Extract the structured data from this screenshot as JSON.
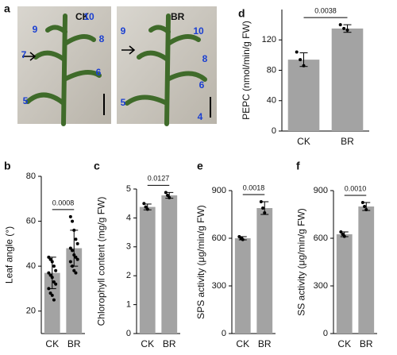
{
  "photos": {
    "panel": "a",
    "images": [
      {
        "label": "CK",
        "numbers": [
          "9",
          "10",
          "8",
          "7",
          "6",
          "5"
        ]
      },
      {
        "label": "BR",
        "numbers": [
          "9",
          "10",
          "8",
          "6",
          "5",
          "4"
        ]
      }
    ]
  },
  "chart_data": [
    {
      "type": "bar",
      "panel": "d",
      "ylabel": "PEPC (nmol/min/g FW)",
      "categories": [
        "CK",
        "BR"
      ],
      "values": [
        94,
        135
      ],
      "errors": [
        9,
        5
      ],
      "points": [
        [
          104,
          94,
          86
        ],
        [
          140,
          135,
          133
        ]
      ],
      "ylim": [
        0,
        160
      ],
      "yticks": [
        0,
        40,
        80,
        120
      ],
      "annotation": "0.0038",
      "color": "#a3a3a3"
    },
    {
      "type": "bar",
      "panel": "b",
      "ylabel": "Leaf angle (°)",
      "categories": [
        "CK",
        "BR"
      ],
      "values": [
        37,
        48
      ],
      "errors": [
        7,
        8
      ],
      "points": [
        [
          44,
          43,
          42,
          40,
          38,
          37,
          36,
          35,
          33,
          32,
          30,
          28,
          27,
          25
        ],
        [
          62,
          60,
          56,
          52,
          50,
          48,
          47,
          45,
          44,
          43,
          42,
          40,
          38,
          37
        ]
      ],
      "ylim": [
        10,
        80
      ],
      "yticks": [
        20,
        40,
        60,
        80
      ],
      "annotation": "0.0008",
      "color": "#a3a3a3"
    },
    {
      "type": "bar",
      "panel": "c",
      "ylabel": "Chlorophyll content (mg/g FW)",
      "categories": [
        "CK",
        "BR"
      ],
      "values": [
        4.38,
        4.78
      ],
      "errors": [
        0.1,
        0.1
      ],
      "points": [
        [
          4.5,
          4.38,
          4.3
        ],
        [
          4.88,
          4.78,
          4.7
        ]
      ],
      "ylim": [
        0,
        5
      ],
      "yticks": [
        0,
        1,
        2,
        3,
        4,
        5
      ],
      "annotation": "0.0127",
      "color": "#a3a3a3"
    },
    {
      "type": "bar",
      "panel": "e",
      "ylabel": "SPS activity (μg/min/g FW)",
      "categories": [
        "CK",
        "BR"
      ],
      "values": [
        600,
        790
      ],
      "errors": [
        10,
        40
      ],
      "points": [
        [
          610,
          600,
          592
        ],
        [
          830,
          790,
          760
        ]
      ],
      "ylim": [
        0,
        900
      ],
      "yticks": [
        0,
        300,
        600,
        900
      ],
      "annotation": "0.0018",
      "color": "#a3a3a3"
    },
    {
      "type": "bar",
      "panel": "f",
      "ylabel": "SS activity (μg/min/g FW)",
      "categories": [
        "CK",
        "BR"
      ],
      "values": [
        625,
        800
      ],
      "errors": [
        15,
        25
      ],
      "points": [
        [
          640,
          625,
          612
        ],
        [
          825,
          800,
          780
        ]
      ],
      "ylim": [
        0,
        900
      ],
      "yticks": [
        0,
        300,
        600,
        900
      ],
      "annotation": "0.0010",
      "color": "#a3a3a3"
    }
  ]
}
